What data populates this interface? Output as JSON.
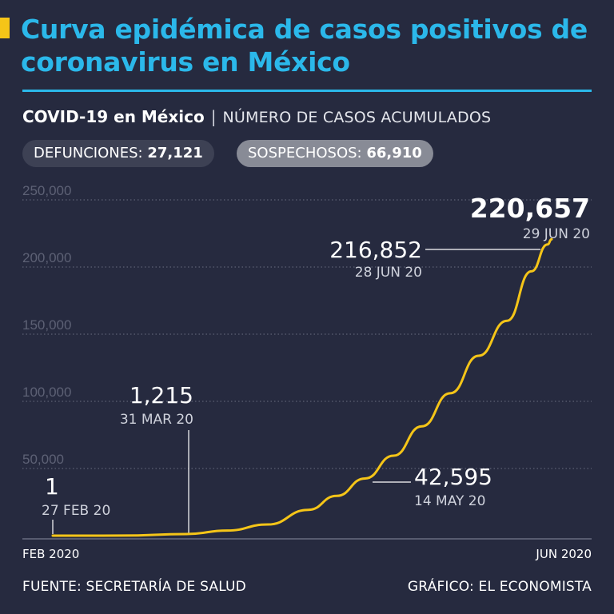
{
  "header": {
    "title": "Curva epidémica de casos positivos de coronavirus en México",
    "subtitle_strong": "COVID-19 en México",
    "subtitle_sep": "|",
    "subtitle_light": "NÚMERO DE CASOS ACUMULADOS"
  },
  "badges": {
    "deaths_label": "DEFUNCIONES:",
    "deaths_value": "27,121",
    "suspects_label": "SOSPECHOSOS:",
    "suspects_value": "66,910"
  },
  "footer": {
    "source": "FUENTE: SECRETARÍA DE SALUD",
    "credit": "GRÁFICO: EL ECONOMISTA"
  },
  "colors": {
    "background": "#262a3f",
    "title": "#2bb8ea",
    "line": "#f5c518",
    "grid": "#6b6f82"
  },
  "chart_data": {
    "type": "line",
    "title": "COVID-19 en México",
    "ylabel": "NÚMERO DE CASOS ACUMULADOS",
    "xlabel": "",
    "x_range": [
      "2020-02-27",
      "2020-06-29"
    ],
    "ylim": [
      0,
      250000
    ],
    "y_ticks": [
      {
        "value": 50000,
        "label": "50,000"
      },
      {
        "value": 100000,
        "label": "100,000"
      },
      {
        "value": 150000,
        "label": "150,000"
      },
      {
        "value": 200000,
        "label": "200,000"
      },
      {
        "value": 250000,
        "label": "250,000"
      }
    ],
    "x_axis_labels": {
      "start": "FEB 2020",
      "end": "JUN 2020"
    },
    "grid": true,
    "series": [
      {
        "points": [
          {
            "date": "2020-02-27",
            "y": 1
          },
          {
            "date": "2020-03-15",
            "y": 41
          },
          {
            "date": "2020-03-31",
            "y": 1215
          },
          {
            "date": "2020-04-10",
            "y": 3800
          },
          {
            "date": "2020-04-20",
            "y": 8300
          },
          {
            "date": "2020-04-30",
            "y": 19200
          },
          {
            "date": "2020-05-07",
            "y": 29600
          },
          {
            "date": "2020-05-14",
            "y": 42595
          },
          {
            "date": "2020-05-21",
            "y": 59500
          },
          {
            "date": "2020-05-28",
            "y": 81400
          },
          {
            "date": "2020-06-04",
            "y": 106000
          },
          {
            "date": "2020-06-11",
            "y": 133900
          },
          {
            "date": "2020-06-18",
            "y": 160000
          },
          {
            "date": "2020-06-24",
            "y": 196800
          },
          {
            "date": "2020-06-28",
            "y": 216852
          },
          {
            "date": "2020-06-29",
            "y": 220657
          }
        ]
      }
    ],
    "annotations": [
      {
        "date": "2020-02-27",
        "y": 1,
        "value_label": "1",
        "date_label": "27 FEB 20"
      },
      {
        "date": "2020-03-31",
        "y": 1215,
        "value_label": "1,215",
        "date_label": "31 MAR 20"
      },
      {
        "date": "2020-05-14",
        "y": 42595,
        "value_label": "42,595",
        "date_label": "14 MAY 20"
      },
      {
        "date": "2020-06-28",
        "y": 216852,
        "value_label": "216,852",
        "date_label": "28 JUN 20"
      },
      {
        "date": "2020-06-29",
        "y": 220657,
        "value_label": "220,657",
        "date_label": "29 JUN 20"
      }
    ]
  }
}
